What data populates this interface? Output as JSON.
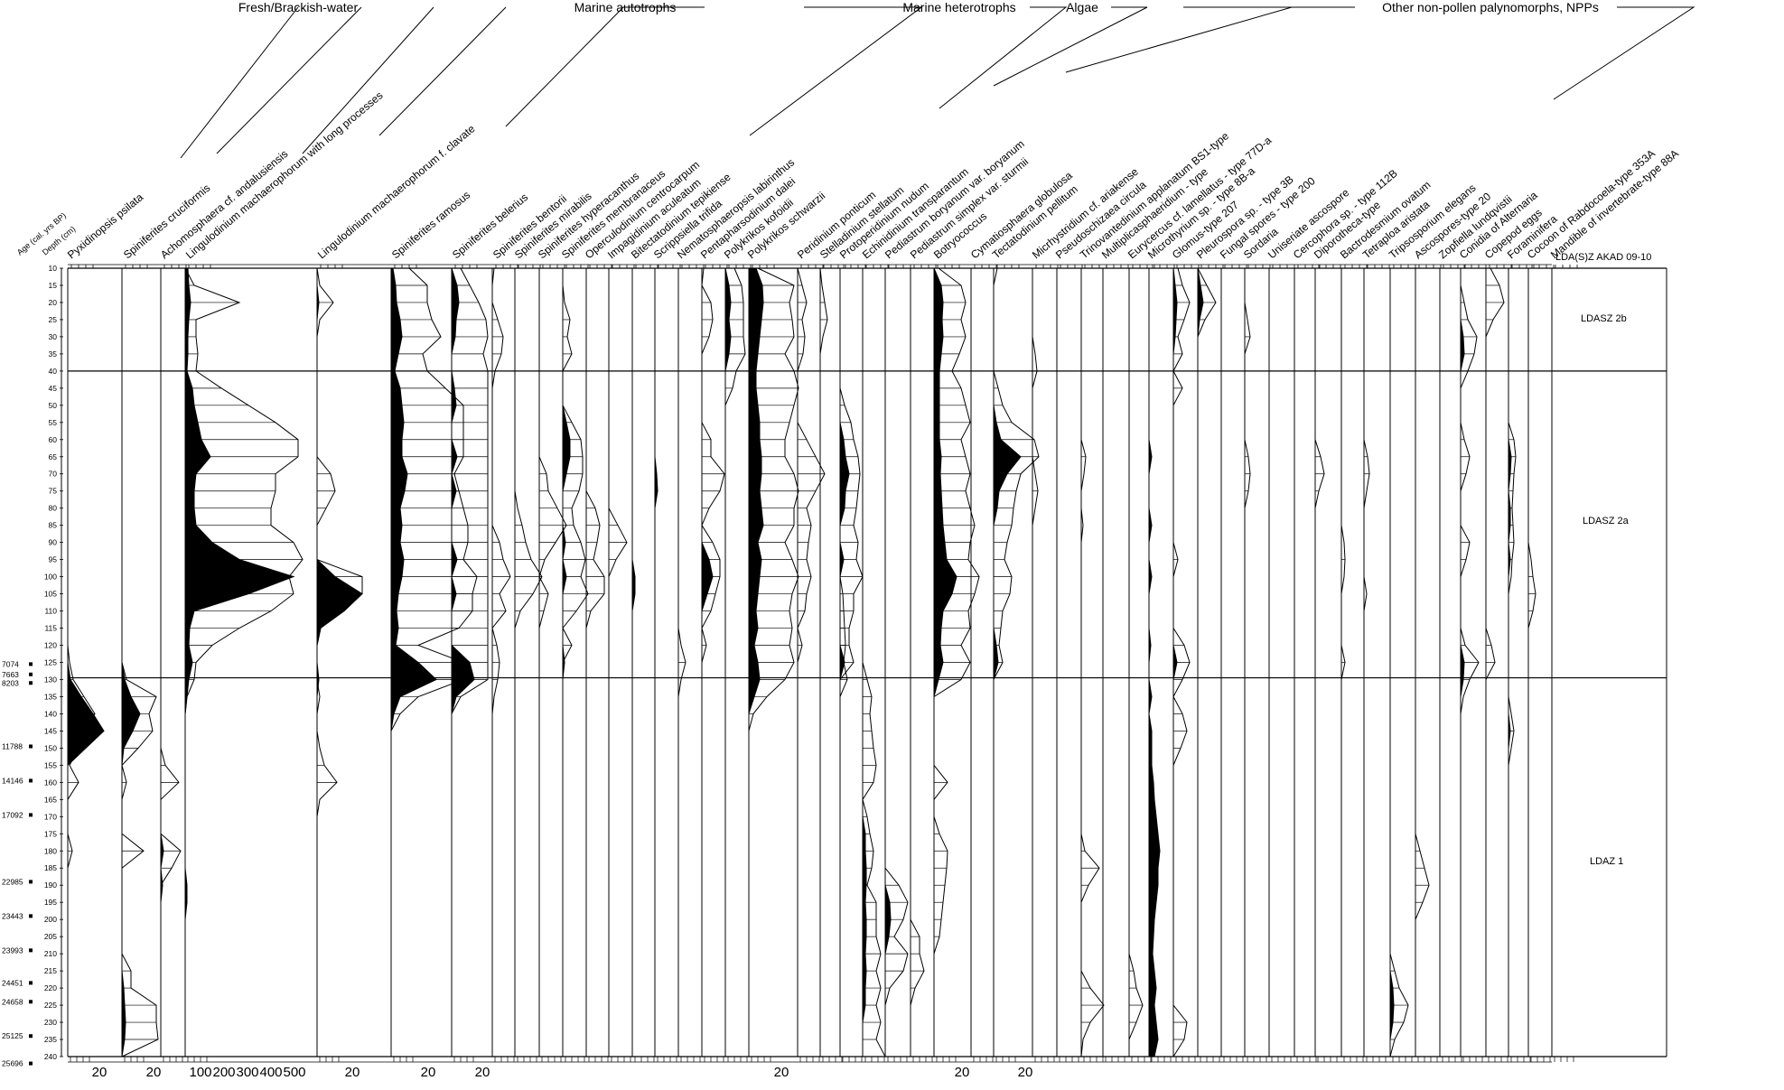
{
  "diagram": {
    "age_header": "Age (cal. yrs BP)",
    "depth_header": "Depth (cm)",
    "zone_header": "LDA(S)Z AKAD 09-10",
    "groups": [
      "Fresh/Brackish-water",
      "Marine autotrophs",
      "Marine heterotrophs",
      "Algae",
      "Other non-pollen palynomorphs, NPPs"
    ],
    "taxa": [
      "Pyxidinopsis psilata",
      "Spiniferites cruciformis",
      "Achomosphaera cf. andalusiensis",
      "Lingulodinium machaerophorum with long processes",
      "Lingulodinium machaerophorum f. clavate",
      "Spiniferites ramosus",
      "Spiniferites belerius",
      "Spiniferites bentorii",
      "Spiniferites mirabilis",
      "Spiniferites hyperacanthus",
      "Spiniferites membranaceus",
      "Operculodinium centrocarpum",
      "Impagidinium aculeatum",
      "Bitectatodinium tepikiense",
      "Scrippsiella trifida",
      "Nematosphaeropsis labirinthus",
      "Pentapharsodinium dalei",
      "Polykrikos kofoidii",
      "Polykrikos schwarzii",
      "Peridinium ponticum",
      "Stelladinium stellatum",
      "Protoperidinium nudum",
      "Echinidinium transparantum",
      "Pediastrum boryanum var. boryanum",
      "Pediastrum simplex var. sturmii",
      "Botryococcus",
      "Cymatiosphaera globulosa",
      "Tectatodinium pellitum",
      "Micrhystridium cf. ariakense",
      "Pseudoschizaea circula",
      "Trinovantedinium applanatum BS1-type",
      "Multiplicasphaeridium - type",
      "Eurycercus cf. lamellatus - type 77D-a",
      "Microthyrium sp. - type 8B-a",
      "Glomus-type 207",
      "Pleurospora sp. - type 3B",
      "Fungal spores - type 200",
      "Sordaria",
      "Uniseriate ascospore",
      "Cercophora sp. - type 112B",
      "Diporotheca-type",
      "Bactrodesmium ovatum",
      "Tetraploa aristata",
      "Tripsosporium elegans",
      "Ascospores-type 20",
      "Zopfiella lundqvistii",
      "Conidia of Alternaria",
      "Copepod eggs",
      "Foraminifera",
      "Cocoon of Rabdocoela-type 353A",
      "Mandible of invertebrate-type 88A"
    ],
    "depths": [
      "10",
      "15",
      "20",
      "25",
      "30",
      "35",
      "40",
      "45",
      "50",
      "55",
      "60",
      "65",
      "70",
      "75",
      "80",
      "85",
      "90",
      "95",
      "100",
      "105",
      "110",
      "115",
      "120",
      "125",
      "130",
      "135",
      "140",
      "145",
      "150",
      "155",
      "160",
      "165",
      "170",
      "175",
      "180",
      "185",
      "190",
      "195",
      "200",
      "205",
      "210",
      "215",
      "220",
      "225",
      "230",
      "235",
      "240"
    ],
    "ages": [
      "7074",
      "7663",
      "8203",
      "11788",
      "14146",
      "17092",
      "22985",
      "23443",
      "23993",
      "24451",
      "24658",
      "25125",
      "25696"
    ],
    "zones": [
      "LDASZ 2b",
      "LDASZ 2a",
      "LDAZ 1"
    ],
    "bottom_labels": [
      "20",
      "20",
      "100",
      "200",
      "300",
      "400",
      "500",
      "20",
      "20",
      "20",
      "20",
      "20",
      "20"
    ]
  }
}
